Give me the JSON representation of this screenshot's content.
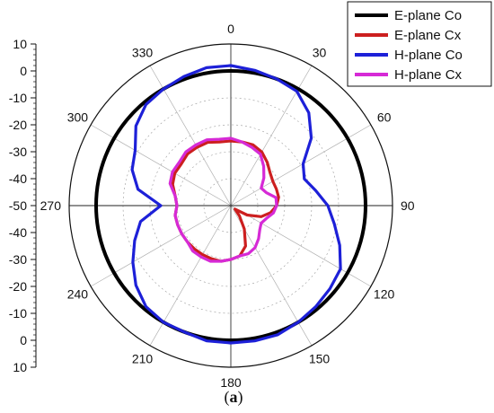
{
  "chart_data": {
    "type": "polar-line",
    "radial_axis": {
      "range": [
        -50,
        10
      ],
      "ticks": [
        10,
        0,
        -10,
        -20,
        -30,
        -40,
        -50,
        -40,
        -30,
        -20,
        -10,
        0,
        10
      ],
      "tick_step": 10
    },
    "angle_ticks": [
      0,
      30,
      60,
      90,
      120,
      150,
      180,
      210,
      240,
      270,
      300,
      330
    ],
    "angle_unit": "deg",
    "grid": true,
    "legend_placement": "top-right",
    "series": [
      {
        "name": "E-plane Co",
        "color": "#000000",
        "angles": [
          0,
          30,
          60,
          90,
          120,
          150,
          180,
          210,
          240,
          270,
          300,
          330
        ],
        "values": [
          0,
          0,
          0,
          0,
          0,
          0,
          0,
          0,
          0,
          0,
          0,
          0
        ]
      },
      {
        "name": "E-plane Cx",
        "color": "#cc1f1f",
        "angles": [
          0,
          10,
          20,
          30,
          40,
          50,
          60,
          70,
          80,
          90,
          100,
          110,
          120,
          130,
          140,
          150,
          160,
          170,
          180,
          190,
          200,
          210,
          220,
          230,
          240,
          250,
          260,
          270,
          280,
          290,
          300,
          310,
          320,
          330,
          340,
          350
        ],
        "values": [
          -26,
          -26,
          -26,
          -27,
          -29,
          -31,
          -32,
          -32,
          -32,
          -33,
          -35,
          -38,
          -43,
          -48,
          -45,
          -40,
          -34,
          -31,
          -30,
          -29,
          -29,
          -29,
          -29,
          -29,
          -29,
          -29,
          -29,
          -30,
          -29,
          -27,
          -26,
          -26,
          -25,
          -25,
          -25,
          -26
        ]
      },
      {
        "name": "H-plane Co",
        "color": "#1d20d8",
        "angles": [
          0,
          10,
          20,
          30,
          40,
          50,
          60,
          70,
          80,
          90,
          100,
          110,
          120,
          130,
          140,
          150,
          160,
          170,
          180,
          190,
          200,
          210,
          220,
          230,
          240,
          250,
          260,
          270,
          280,
          290,
          300,
          310,
          320,
          330,
          340,
          350
        ],
        "values": [
          2,
          1,
          0,
          -1,
          -5,
          -11,
          -19,
          -21,
          -18,
          -14,
          -11,
          -7,
          -3,
          -2,
          -1,
          0,
          1,
          1,
          1,
          1,
          0,
          0,
          -1,
          -4,
          -8,
          -12,
          -16,
          -24,
          -15,
          -11,
          -9,
          -4,
          -1,
          0,
          1,
          2
        ]
      },
      {
        "name": "H-plane Cx",
        "color": "#d62ad6",
        "angles": [
          0,
          10,
          20,
          30,
          40,
          50,
          60,
          70,
          80,
          90,
          100,
          110,
          120,
          130,
          140,
          150,
          160,
          170,
          180,
          190,
          200,
          210,
          220,
          230,
          240,
          250,
          260,
          270,
          280,
          290,
          300,
          310,
          320,
          330,
          340,
          350
        ],
        "values": [
          -25,
          -26,
          -27,
          -28,
          -31,
          -34,
          -37,
          -36,
          -33,
          -33,
          -34,
          -36,
          -37,
          -36,
          -34,
          -32,
          -31,
          -31,
          -30,
          -29,
          -28,
          -28,
          -28,
          -29,
          -29,
          -29,
          -29,
          -30,
          -29,
          -26,
          -25,
          -25,
          -24,
          -24,
          -24,
          -25
        ]
      }
    ]
  },
  "caption": {
    "open": "(",
    "label": "a",
    "close": ")"
  }
}
